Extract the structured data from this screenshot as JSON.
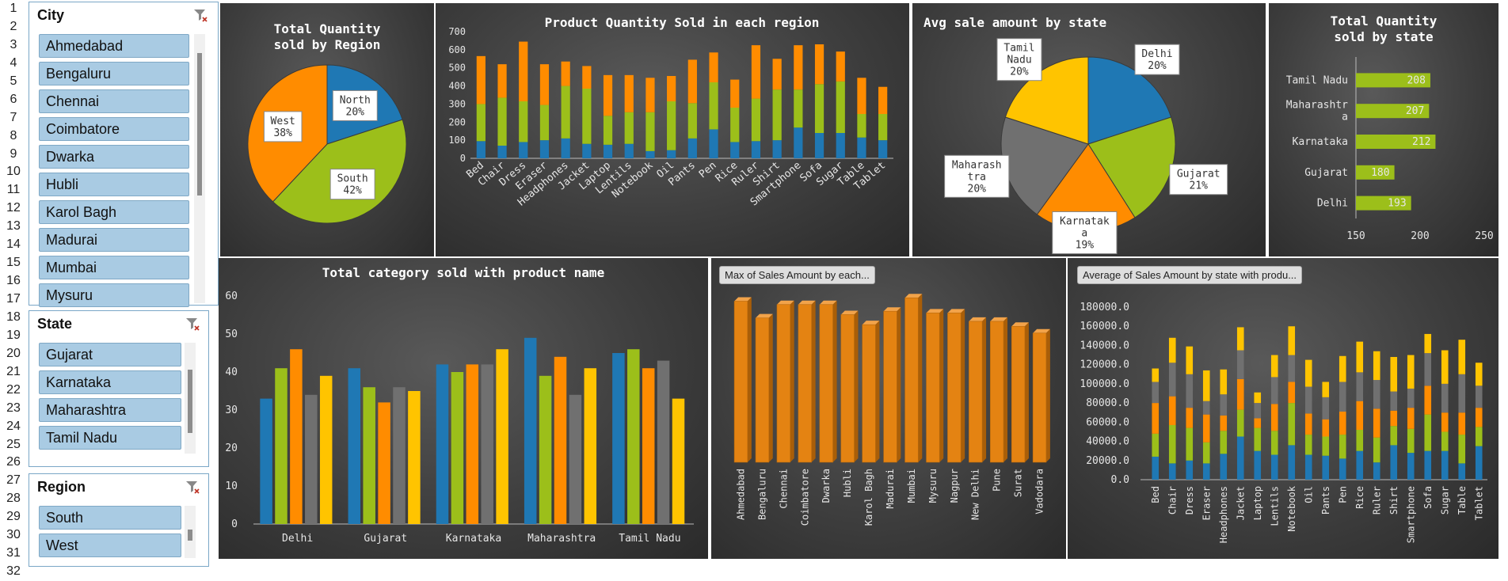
{
  "row_numbers": [
    "1",
    "2",
    "3",
    "4",
    "5",
    "6",
    "7",
    "8",
    "9",
    "10",
    "11",
    "12",
    "13",
    "14",
    "15",
    "16",
    "17",
    "18",
    "19",
    "20",
    "21",
    "22",
    "23",
    "24",
    "25",
    "26",
    "27",
    "28",
    "29",
    "30",
    "31",
    "32"
  ],
  "colors": {
    "blue": "#1f78b4",
    "green": "#9cbf1a",
    "orange": "#ff8c00",
    "gray": "#707070",
    "yellow": "#ffc400",
    "bar_orange": "#e48312"
  },
  "slicers": {
    "city": {
      "title": "City",
      "items": [
        "Ahmedabad",
        "Bengaluru",
        "Chennai",
        "Coimbatore",
        "Dwarka",
        "Hubli",
        "Karol Bagh",
        "Madurai",
        "Mumbai",
        "Mysuru"
      ],
      "icon": "filter-clear-icon"
    },
    "state": {
      "title": "State",
      "items": [
        "Gujarat",
        "Karnataka",
        "Maharashtra",
        "Tamil Nadu"
      ],
      "icon": "filter-clear-icon"
    },
    "region": {
      "title": "Region",
      "items": [
        "South",
        "West"
      ],
      "icon": "filter-clear-icon"
    }
  },
  "chart_data": [
    {
      "id": "region_pie",
      "type": "pie",
      "title_lines": [
        "Total Quantity",
        "sold by Region"
      ],
      "slices": [
        {
          "name": "North",
          "value": 20,
          "label": "20%",
          "color": "blue"
        },
        {
          "name": "South",
          "value": 42,
          "label": "42%",
          "color": "green"
        },
        {
          "name": "West",
          "value": 38,
          "label": "38%",
          "color": "orange"
        }
      ]
    },
    {
      "id": "product_stacked",
      "type": "bar",
      "stacked": true,
      "title": "Product Quantity Sold in each region",
      "categories": [
        "Bed",
        "Chair",
        "Dress",
        "Eraser",
        "Headphones",
        "Jacket",
        "Laptop",
        "Lentils",
        "Notebook",
        "Oil",
        "Pants",
        "Pen",
        "Rice",
        "Ruler",
        "Shirt",
        "Smartphone",
        "Sofa",
        "Sugar",
        "Table",
        "Tablet"
      ],
      "ylim": [
        0,
        700
      ],
      "yticks": [
        "0",
        "100",
        "200",
        "300",
        "400",
        "500",
        "600",
        "700"
      ],
      "series": [
        {
          "color": "blue",
          "values": [
            95,
            70,
            90,
            100,
            110,
            80,
            75,
            80,
            40,
            45,
            110,
            160,
            90,
            95,
            100,
            170,
            140,
            140,
            115,
            100
          ]
        },
        {
          "color": "green",
          "values": [
            205,
            265,
            225,
            195,
            290,
            305,
            160,
            175,
            215,
            270,
            195,
            260,
            190,
            235,
            280,
            210,
            270,
            285,
            130,
            145
          ]
        },
        {
          "color": "orange",
          "values": [
            265,
            185,
            330,
            225,
            135,
            125,
            225,
            205,
            190,
            140,
            240,
            165,
            155,
            295,
            170,
            245,
            220,
            165,
            200,
            150
          ]
        }
      ]
    },
    {
      "id": "state_pie",
      "type": "pie",
      "title": "Avg sale amount by state",
      "slices": [
        {
          "name": "Delhi",
          "value": 20,
          "label_lines": [
            "Delhi",
            "20%"
          ],
          "color": "blue"
        },
        {
          "name": "Gujarat",
          "value": 21,
          "label_lines": [
            "Gujarat",
            "21%"
          ],
          "color": "green"
        },
        {
          "name": "Karnataka",
          "value": 19,
          "label_lines": [
            "Karnatak",
            "a",
            "19%"
          ],
          "color": "orange"
        },
        {
          "name": "Maharashtra",
          "value": 20,
          "label_lines": [
            "Maharash",
            "tra",
            "20%"
          ],
          "color": "gray"
        },
        {
          "name": "Tamil Nadu",
          "value": 20,
          "label_lines": [
            "Tamil",
            "Nadu",
            "20%"
          ],
          "color": "yellow"
        }
      ]
    },
    {
      "id": "state_hbar",
      "type": "bar",
      "orientation": "horizontal",
      "title_lines": [
        "Total Quantity",
        "sold by state"
      ],
      "categories": [
        [
          "Tamil Nadu"
        ],
        [
          "Maharashtr",
          "a"
        ],
        [
          "Karnataka"
        ],
        [
          "Gujarat"
        ],
        [
          "Delhi"
        ]
      ],
      "values": [
        208,
        207,
        212,
        180,
        193
      ],
      "labels": [
        "208",
        "207",
        "212",
        "180",
        "193"
      ],
      "xlim": [
        150,
        250
      ],
      "xticks": [
        "150",
        "200",
        "250"
      ]
    },
    {
      "id": "category_grouped",
      "type": "bar",
      "title": "Total category sold with product name",
      "categories": [
        "Delhi",
        "Gujarat",
        "Karnataka",
        "Maharashtra",
        "Tamil Nadu"
      ],
      "ylim": [
        0,
        60
      ],
      "yticks": [
        "0",
        "10",
        "20",
        "30",
        "40",
        "50",
        "60"
      ],
      "colors": [
        "blue",
        "green",
        "orange",
        "gray",
        "yellow"
      ],
      "groups": [
        [
          33,
          41,
          46,
          34,
          39
        ],
        [
          41,
          36,
          32,
          36,
          35
        ],
        [
          42,
          40,
          42,
          42,
          46
        ],
        [
          49,
          39,
          44,
          34,
          41
        ],
        [
          45,
          46,
          41,
          43,
          33
        ]
      ]
    },
    {
      "id": "city_max",
      "type": "bar",
      "title": "Max of Sales Amount by each...",
      "categories": [
        "Ahmedabad",
        "Bengaluru",
        "Chennai",
        "Coimbatore",
        "Dwarka",
        "Hubli",
        "Karol Bagh",
        "Madurai",
        "Mumbai",
        "Mysuru",
        "Nagpur",
        "New Delhi",
        "Pune",
        "Surat",
        "Vadodara"
      ],
      "values": [
        96,
        86,
        94,
        94,
        94,
        88,
        82,
        90,
        98,
        89,
        89,
        84,
        84,
        81,
        77
      ]
    },
    {
      "id": "state_product_stacked",
      "type": "bar",
      "stacked": true,
      "title": "Average of Sales Amount by state with produ...",
      "categories": [
        "Bed",
        "Chair",
        "Dress",
        "Eraser",
        "Headphones",
        "Jacket",
        "Laptop",
        "Lentils",
        "Notebook",
        "Oil",
        "Pants",
        "Pen",
        "Rice",
        "Ruler",
        "Shirt",
        "Smartphone",
        "Sofa",
        "Sugar",
        "Table",
        "Tablet"
      ],
      "ylim": [
        0,
        180000
      ],
      "yticks": [
        "0.0",
        "20000.0",
        "40000.0",
        "60000.0",
        "80000.0",
        "100000.0",
        "120000.0",
        "140000.0",
        "160000.0",
        "180000.0"
      ],
      "series": [
        {
          "color": "blue",
          "values": [
            24000,
            17000,
            20000,
            17000,
            27000,
            45000,
            30000,
            26000,
            36000,
            26000,
            25000,
            22000,
            30000,
            18000,
            36000,
            28000,
            30000,
            30000,
            17000,
            35000
          ]
        },
        {
          "color": "green",
          "values": [
            24000,
            40000,
            34000,
            22000,
            24000,
            28000,
            24000,
            25000,
            44000,
            21000,
            20000,
            25000,
            22000,
            26000,
            20000,
            25000,
            38000,
            20000,
            30000,
            20000
          ]
        },
        {
          "color": "orange",
          "values": [
            32000,
            30000,
            21000,
            29000,
            16000,
            32000,
            10000,
            28000,
            22000,
            22000,
            18000,
            24000,
            30000,
            30000,
            16000,
            22000,
            30000,
            20000,
            23000,
            20000
          ]
        },
        {
          "color": "gray",
          "values": [
            22000,
            35000,
            35000,
            14000,
            22000,
            30000,
            16000,
            28000,
            28000,
            28000,
            23000,
            31000,
            30000,
            30000,
            20000,
            20000,
            34000,
            30000,
            40000,
            23000
          ]
        },
        {
          "color": "yellow",
          "values": [
            14000,
            26000,
            29000,
            32000,
            26000,
            24000,
            11000,
            23000,
            30000,
            28000,
            16000,
            27000,
            32000,
            30000,
            36000,
            35000,
            20000,
            35000,
            36000,
            24000
          ]
        }
      ]
    }
  ]
}
